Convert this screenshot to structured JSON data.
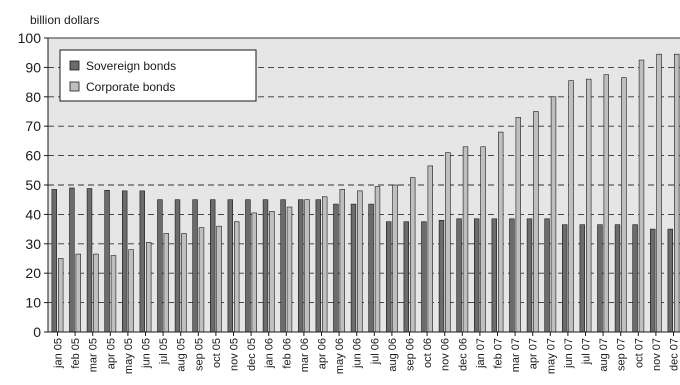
{
  "chart_data": {
    "type": "bar",
    "ylabel": "billion dollars",
    "ylim": [
      0,
      100
    ],
    "yticks": [
      0,
      10,
      20,
      30,
      40,
      50,
      60,
      70,
      80,
      90,
      100
    ],
    "grid": "horizontal dashed",
    "legend_position": "top-left",
    "categories": [
      "jan 05",
      "feb 05",
      "mar 05",
      "apr 05",
      "may 05",
      "jun 05",
      "jul 05",
      "aug 05",
      "sep 05",
      "oct 05",
      "nov 05",
      "dec 05",
      "jan 06",
      "feb 06",
      "mar 06",
      "apr 06",
      "may 06",
      "jun 06",
      "jul 06",
      "aug 06",
      "sep 06",
      "oct 06",
      "nov 06",
      "dec 06",
      "jan 07",
      "feb 07",
      "mar 07",
      "apr 07",
      "may 07",
      "jun 07",
      "jul 07",
      "aug 07",
      "sep 07",
      "oct 07",
      "nov 07",
      "dec 07"
    ],
    "series": [
      {
        "name": "Sovereign bonds",
        "color": "#6b6b6b",
        "values": [
          48.5,
          49,
          48.8,
          48.2,
          48,
          48,
          45,
          45,
          45,
          45,
          45,
          45,
          45,
          45,
          45,
          45,
          43.5,
          43.5,
          43.5,
          37.5,
          37.5,
          37.5,
          38,
          38.5,
          38.5,
          38.5,
          38.5,
          38.5,
          38.5,
          36.5,
          36.5,
          36.5,
          36.5,
          36.5,
          35,
          35
        ]
      },
      {
        "name": "Corporate bonds",
        "color": "#bfbfbf",
        "values": [
          25,
          26.5,
          26.5,
          26,
          28,
          30.5,
          33.5,
          33.5,
          35.5,
          36,
          37.5,
          40.5,
          41,
          42.5,
          45,
          46,
          48.5,
          48,
          49.5,
          50,
          52.5,
          56.5,
          61,
          63,
          63,
          68,
          73,
          75,
          80,
          85.5,
          86,
          87.5,
          86.5,
          92.5,
          94.5,
          94.5
        ]
      }
    ]
  }
}
